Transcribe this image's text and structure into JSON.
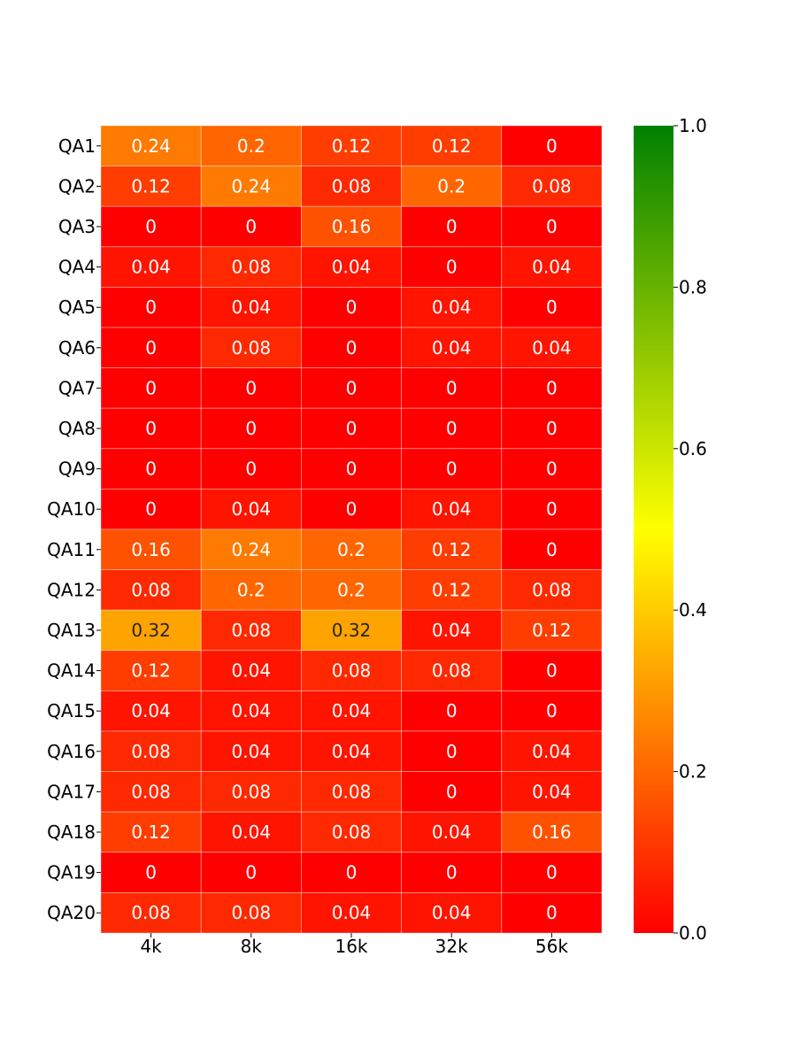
{
  "chart_data": {
    "type": "heatmap",
    "title": "",
    "xlabel": "",
    "ylabel": "",
    "x_categories": [
      "4k",
      "8k",
      "16k",
      "32k",
      "56k"
    ],
    "y_categories": [
      "QA1",
      "QA2",
      "QA3",
      "QA4",
      "QA5",
      "QA6",
      "QA7",
      "QA8",
      "QA9",
      "QA10",
      "QA11",
      "QA12",
      "QA13",
      "QA14",
      "QA15",
      "QA16",
      "QA17",
      "QA18",
      "QA19",
      "QA20"
    ],
    "values": [
      [
        0.24,
        0.2,
        0.12,
        0.12,
        0
      ],
      [
        0.12,
        0.24,
        0.08,
        0.2,
        0.08
      ],
      [
        0,
        0,
        0.16,
        0,
        0
      ],
      [
        0.04,
        0.08,
        0.04,
        0,
        0.04
      ],
      [
        0,
        0.04,
        0,
        0.04,
        0
      ],
      [
        0,
        0.08,
        0,
        0.04,
        0.04
      ],
      [
        0,
        0,
        0,
        0,
        0
      ],
      [
        0,
        0,
        0,
        0,
        0
      ],
      [
        0,
        0,
        0,
        0,
        0
      ],
      [
        0,
        0.04,
        0,
        0.04,
        0
      ],
      [
        0.16,
        0.24,
        0.2,
        0.12,
        0
      ],
      [
        0.08,
        0.2,
        0.2,
        0.12,
        0.08
      ],
      [
        0.32,
        0.08,
        0.32,
        0.04,
        0.12
      ],
      [
        0.12,
        0.04,
        0.08,
        0.08,
        0
      ],
      [
        0.04,
        0.04,
        0.04,
        0,
        0
      ],
      [
        0.08,
        0.04,
        0.04,
        0,
        0.04
      ],
      [
        0.08,
        0.08,
        0.08,
        0,
        0.04
      ],
      [
        0.12,
        0.04,
        0.08,
        0.04,
        0.16
      ],
      [
        0,
        0,
        0,
        0,
        0
      ],
      [
        0.08,
        0.08,
        0.04,
        0.04,
        0
      ]
    ],
    "colorbar": {
      "range": [
        0.0,
        1.0
      ],
      "ticks": [
        0.0,
        0.2,
        0.4,
        0.6,
        0.8,
        1.0
      ],
      "tick_labels": [
        "0.0",
        "0.2",
        "0.4",
        "0.6",
        "0.8",
        "1.0"
      ],
      "colors": [
        "#ff0000",
        "#ffff00",
        "#008000"
      ]
    }
  }
}
